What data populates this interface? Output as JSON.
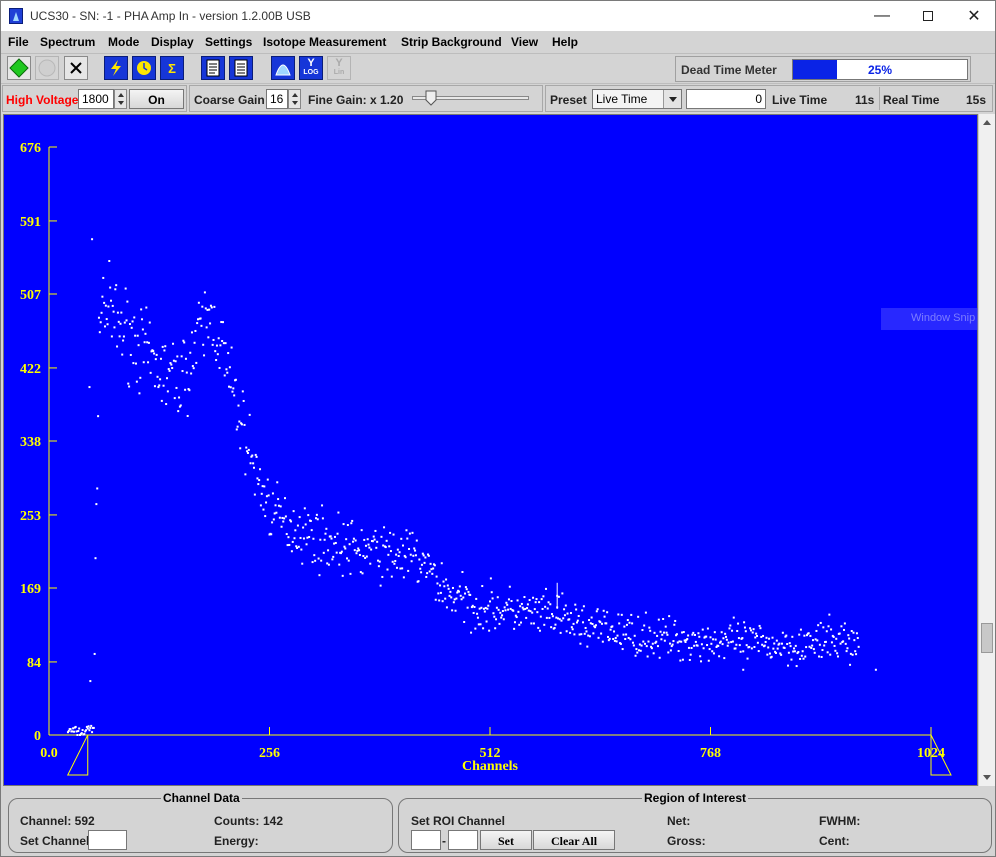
{
  "window": {
    "title": "UCS30 - SN: -1 - PHA Amp In  - version 1.2.00B USB",
    "min": "—",
    "close": "✕"
  },
  "menu": [
    "File",
    "Spectrum",
    "Mode",
    "Display",
    "Settings",
    "Isotope Measurement",
    "Strip Background",
    "View",
    "Help"
  ],
  "toolbar": {
    "dead_time_label": "Dead Time Meter",
    "dead_time_value": "25%",
    "dead_time_fraction": 0.25,
    "log_label": "LOG",
    "lin_label": "Lin",
    "y_label": "Y"
  },
  "controls": {
    "high_voltage_label": "High Voltage",
    "high_voltage_value": "1800",
    "hv_on_label": "On",
    "coarse_gain_label": "Coarse Gain",
    "coarse_gain_value": "16",
    "fine_gain_label": "Fine Gain: x 1.20",
    "fine_gain_fraction": 0.12,
    "preset_label": "Preset",
    "preset_value": "Live Time",
    "preset_count": "0",
    "live_time_label": "Live Time",
    "live_time_value": "11s",
    "real_time_label": "Real Time",
    "real_time_value": "15s"
  },
  "colors": {
    "plot_bg": "#0000ff",
    "axis": "#ffff00",
    "points": "#ffffff",
    "hv_label": "#ff0000",
    "dead_time": "#0a23e6"
  },
  "overlay": {
    "snip_text": "Window Snip"
  },
  "chart_data": {
    "type": "scatter",
    "title": "",
    "xlabel": "Channels",
    "ylabel": "",
    "xlim": [
      0,
      1024
    ],
    "ylim": [
      0,
      676
    ],
    "x_ticks": [
      "0.0",
      "256",
      "512",
      "768",
      "1024"
    ],
    "y_ticks": [
      "0",
      "84",
      "169",
      "253",
      "338",
      "422",
      "507",
      "591",
      "676"
    ],
    "grid": false,
    "profile": [
      [
        22,
        5
      ],
      [
        30,
        4
      ],
      [
        40,
        3
      ],
      [
        48,
        8
      ],
      [
        52,
        10
      ],
      [
        56,
        330
      ],
      [
        58,
        460
      ],
      [
        62,
        500
      ],
      [
        70,
        485
      ],
      [
        80,
        470
      ],
      [
        90,
        465
      ],
      [
        100,
        455
      ],
      [
        110,
        440
      ],
      [
        120,
        425
      ],
      [
        130,
        418
      ],
      [
        140,
        412
      ],
      [
        150,
        408
      ],
      [
        160,
        420
      ],
      [
        170,
        445
      ],
      [
        180,
        470
      ],
      [
        188,
        478
      ],
      [
        194,
        470
      ],
      [
        200,
        450
      ],
      [
        206,
        420
      ],
      [
        212,
        400
      ],
      [
        220,
        370
      ],
      [
        230,
        340
      ],
      [
        240,
        300
      ],
      [
        250,
        275
      ],
      [
        260,
        255
      ],
      [
        270,
        246
      ],
      [
        290,
        236
      ],
      [
        310,
        228
      ],
      [
        330,
        220
      ],
      [
        350,
        214
      ],
      [
        370,
        212
      ],
      [
        390,
        208
      ],
      [
        410,
        207
      ],
      [
        420,
        205
      ],
      [
        430,
        200
      ],
      [
        440,
        190
      ],
      [
        450,
        178
      ],
      [
        460,
        166
      ],
      [
        470,
        160
      ],
      [
        490,
        150
      ],
      [
        510,
        146
      ],
      [
        540,
        142
      ],
      [
        570,
        138
      ],
      [
        600,
        132
      ],
      [
        620,
        126
      ],
      [
        640,
        122
      ],
      [
        660,
        118
      ],
      [
        690,
        114
      ],
      [
        720,
        110
      ],
      [
        760,
        108
      ],
      [
        800,
        106
      ],
      [
        840,
        104
      ],
      [
        870,
        104
      ],
      [
        900,
        106
      ],
      [
        920,
        110
      ],
      [
        940,
        104
      ]
    ],
    "outliers": [
      [
        50,
        570
      ],
      [
        47,
        400
      ],
      [
        48,
        62
      ],
      [
        590,
        160
      ],
      [
        806,
        75
      ],
      [
        960,
        75
      ]
    ],
    "range_markers": [
      45,
      1024
    ]
  },
  "channel_data": {
    "title": "Channel Data",
    "channel_label": "Channel: 592",
    "counts_label": "Counts:",
    "counts_value": "142",
    "set_channel_label": "Set Channel",
    "energy_label": "Energy:"
  },
  "roi": {
    "title": "Region of Interest",
    "set_roi_label": "Set ROI Channel",
    "dash": "-",
    "set_button": "Set",
    "clear_button": "Clear All",
    "net_label": "Net:",
    "gross_label": "Gross:",
    "fwhm_label": "FWHM:",
    "cent_label": "Cent:"
  }
}
